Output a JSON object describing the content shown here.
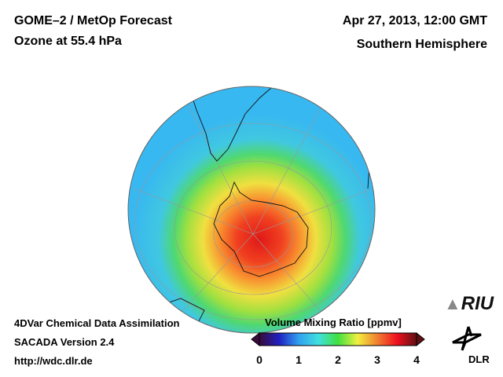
{
  "header": {
    "title_line1": "GOME–2 / MetOp Forecast",
    "title_line2": "Ozone at 55.4 hPa",
    "datetime": "Apr 27, 2013, 12:00 GMT",
    "region": "Southern Hemisphere"
  },
  "footer": {
    "line1": "4DVar Chemical Data Assimilation",
    "line2": "SACADA Version 2.4",
    "line3": "http://wdc.dlr.de"
  },
  "colorbar": {
    "title": "Volume Mixing Ratio [ppmv]",
    "ticks": [
      "0",
      "1",
      "2",
      "3",
      "4"
    ],
    "range": [
      0,
      4
    ],
    "colors": [
      "#3a0a3a",
      "#2020c0",
      "#30a0f0",
      "#40e0e0",
      "#40e040",
      "#f0f040",
      "#f08030",
      "#f01020",
      "#601010"
    ]
  },
  "logos": {
    "riu": "RIU",
    "dlr": "DLR"
  }
}
